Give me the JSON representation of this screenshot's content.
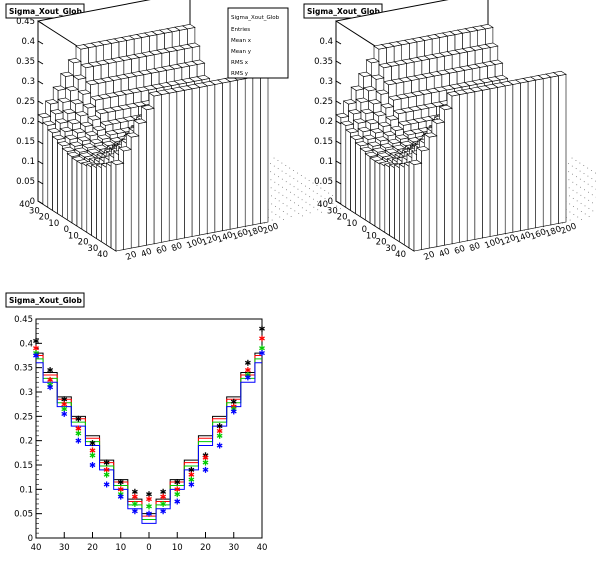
{
  "chart_data": [
    {
      "type": "lego3d",
      "title": "Sigma_Xout_Glob",
      "x_ticks": [
        "40",
        "30",
        "20",
        "10",
        "0",
        "10",
        "20",
        "30",
        "40"
      ],
      "y_ticks": [
        "20",
        "40",
        "60",
        "80",
        "100",
        "120",
        "140",
        "160",
        "180",
        "200"
      ],
      "z_ticks": [
        "0",
        "0.05",
        "0.1",
        "0.15",
        "0.2",
        "0.25",
        "0.3",
        "0.35",
        "0.4",
        "0.45"
      ],
      "zlim": [
        0,
        0.45
      ],
      "stats_box": {
        "lines": [
          "Sigma_Xout_Glob",
          "Entries",
          "Mean x",
          "Mean y",
          "RMS x",
          "RMS y"
        ]
      }
    },
    {
      "type": "lego3d",
      "title": "Sigma_Xout_Glob",
      "x_ticks": [
        "40",
        "30",
        "20",
        "10",
        "0",
        "10",
        "20",
        "30",
        "40"
      ],
      "y_ticks": [
        "20",
        "40",
        "60",
        "80",
        "100",
        "120",
        "140",
        "160",
        "180",
        "200"
      ],
      "z_ticks": [
        "0",
        "0.05",
        "0.1",
        "0.15",
        "0.2",
        "0.25",
        "0.3",
        "0.35",
        "0.4"
      ],
      "zlim": [
        0,
        0.45
      ]
    },
    {
      "type": "scatter",
      "title": "Sigma_Xout_Glob",
      "x_ticks": [
        "40",
        "30",
        "20",
        "10",
        "0",
        "10",
        "20",
        "30",
        "40"
      ],
      "y_ticks": [
        "0",
        "0.05",
        "0.1",
        "0.15",
        "0.2",
        "0.25",
        "0.3",
        "0.35",
        "0.4",
        "0.45"
      ],
      "xlim": [
        -40,
        40
      ],
      "ylim": [
        0,
        0.45
      ],
      "x": [
        -40,
        -35,
        -30,
        -25,
        -20,
        -15,
        -10,
        -5,
        0,
        5,
        10,
        15,
        20,
        25,
        30,
        35,
        40
      ],
      "histogram": {
        "name": "blue-histogram",
        "color": "#0000ff",
        "values": [
          0.36,
          0.32,
          0.27,
          0.23,
          0.19,
          0.14,
          0.1,
          0.06,
          0.03,
          0.06,
          0.1,
          0.14,
          0.19,
          0.23,
          0.27,
          0.32,
          0.36
        ]
      },
      "series": [
        {
          "color": "#000000",
          "values": [
            0.405,
            0.345,
            0.285,
            0.245,
            0.195,
            0.155,
            0.115,
            0.095,
            0.09,
            0.095,
            0.115,
            0.14,
            0.17,
            0.23,
            0.28,
            0.36,
            0.43
          ]
        },
        {
          "color": "#ff0000",
          "values": [
            0.39,
            0.325,
            0.275,
            0.225,
            0.18,
            0.14,
            0.1,
            0.085,
            0.08,
            0.085,
            0.1,
            0.13,
            0.165,
            0.22,
            0.27,
            0.345,
            0.41
          ]
        },
        {
          "color": "#00cc00",
          "values": [
            0.38,
            0.315,
            0.265,
            0.215,
            0.17,
            0.13,
            0.09,
            0.07,
            0.065,
            0.07,
            0.09,
            0.12,
            0.155,
            0.21,
            0.265,
            0.335,
            0.39
          ]
        },
        {
          "color": "#0000ff",
          "values": [
            0.375,
            0.31,
            0.255,
            0.2,
            0.15,
            0.11,
            0.085,
            0.055,
            0.05,
            0.055,
            0.075,
            0.11,
            0.14,
            0.19,
            0.26,
            0.33,
            0.38
          ]
        }
      ]
    }
  ]
}
